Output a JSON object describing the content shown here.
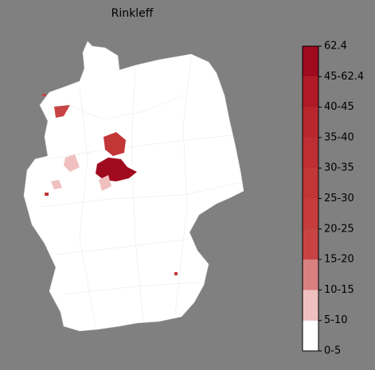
{
  "title": "Rinkleff",
  "colorbar": {
    "labels": [
      "0-5",
      "5-10",
      "10-15",
      "15-20",
      "20-25",
      "25-30",
      "30-35",
      "35-40",
      "40-45",
      "45-62.4",
      "62.4"
    ],
    "colors": [
      "#ffffff",
      "#f0c0c0",
      "#d98080",
      "#c84444",
      "#c63c3c",
      "#c23636",
      "#bd2f32",
      "#b8272d",
      "#af1a26",
      "#a00a1e"
    ]
  }
}
